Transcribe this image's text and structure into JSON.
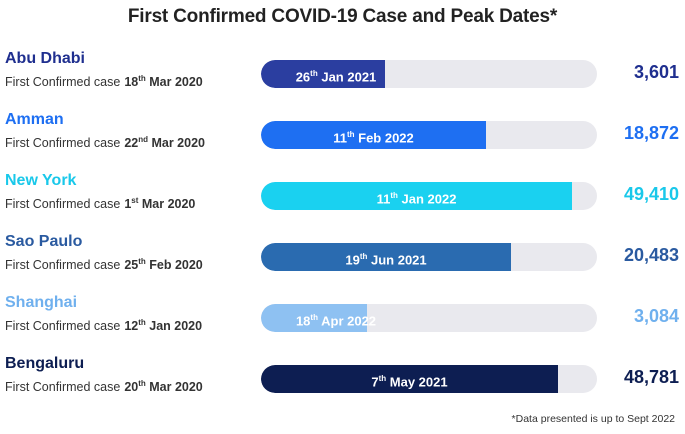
{
  "title": "First Confirmed COVID-19 Case and Peak Dates*",
  "footnote": "*Data presented is up to Sept 2022",
  "first_case_label": "First Confirmed case",
  "chart_data": {
    "type": "bar",
    "orientation": "horizontal",
    "title": "First Confirmed COVID-19 Case and Peak Dates*",
    "xlim": [
      0,
      55000
    ],
    "categories": [
      "Abu Dhabi",
      "Amman",
      "New York",
      "Sao Paulo",
      "Shanghai",
      "Bengaluru"
    ],
    "values": [
      3601,
      18872,
      49410,
      20483,
      3084,
      48781
    ],
    "value_labels": [
      "3,601",
      "18,872",
      "49,410",
      "20,483",
      "3,084",
      "48,781"
    ],
    "rows": [
      {
        "city": "Abu Dhabi",
        "first_day": "18",
        "first_sfx": "th",
        "first_rest": "Mar 2020",
        "peak_day": "26",
        "peak_sfx": "th",
        "peak_rest": "Jan 2021",
        "value": 3601,
        "value_label": "3,601",
        "color": "#2b3ea0",
        "name_color": "#1f2f8f",
        "value_color": "#1f2f8f",
        "peak_text_color": "#ffffff",
        "fill": 0.37
      },
      {
        "city": "Amman",
        "first_day": "22",
        "first_sfx": "nd",
        "first_rest": "Mar 2020",
        "peak_day": "11",
        "peak_sfx": "th",
        "peak_rest": "Feb 2022",
        "value": 18872,
        "value_label": "18,872",
        "color": "#1e6ff2",
        "name_color": "#1e6ff2",
        "value_color": "#1e6ff2",
        "peak_text_color": "#ffffff",
        "fill": 0.67
      },
      {
        "city": "New York",
        "first_day": "1",
        "first_sfx": "st",
        "first_rest": "Mar 2020",
        "peak_day": "11",
        "peak_sfx": "th",
        "peak_rest": "Jan 2022",
        "value": 49410,
        "value_label": "49,410",
        "color": "#1ad1f0",
        "name_color": "#19c8ea",
        "value_color": "#19c8ea",
        "peak_text_color": "#ffffff",
        "fill": 0.925
      },
      {
        "city": "Sao Paulo",
        "first_day": "25",
        "first_sfx": "th",
        "first_rest": "Feb 2020",
        "peak_day": "19",
        "peak_sfx": "th",
        "peak_rest": "Jun 2021",
        "value": 20483,
        "value_label": "20,483",
        "color": "#2a6bb0",
        "name_color": "#2a5aa0",
        "value_color": "#2a5aa0",
        "peak_text_color": "#ffffff",
        "fill": 0.745
      },
      {
        "city": "Shanghai",
        "first_day": "12",
        "first_sfx": "th",
        "first_rest": "Jan 2020",
        "peak_day": "18",
        "peak_sfx": "th",
        "peak_rest": "Apr 2022",
        "value": 3084,
        "value_label": "3,084",
        "color": "#8ec1f2",
        "name_color": "#6fb0ee",
        "value_color": "#6fb0ee",
        "peak_text_color": "#ffffff",
        "fill": 0.315
      },
      {
        "city": "Bengaluru",
        "first_day": "20",
        "first_sfx": "th",
        "first_rest": "Mar 2020",
        "peak_day": "7",
        "peak_sfx": "th",
        "peak_rest": "May 2021",
        "value": 48781,
        "value_label": "48,781",
        "color": "#0d1e52",
        "name_color": "#0d1e52",
        "value_color": "#0d1e52",
        "peak_text_color": "#ffffff",
        "fill": 0.885
      }
    ]
  }
}
